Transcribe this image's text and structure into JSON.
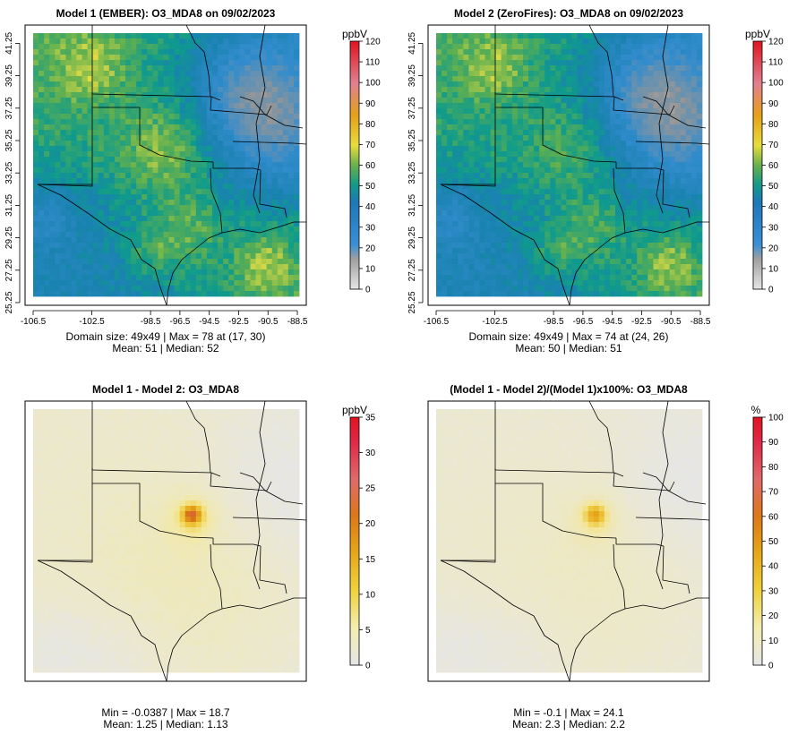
{
  "chart_data": [
    {
      "type": "heatmap",
      "id": "p1",
      "title": "Model 1 (EMBER): O3_MDA8 on 09/02/2023",
      "x_ticks": [
        "-106.5",
        "-102.5",
        "-98.5",
        "-96.5",
        "-94.5",
        "-92.5",
        "-90.5",
        "-88.5"
      ],
      "x_tick_values": [
        -106.5,
        -102.5,
        -98.5,
        -96.5,
        -94.5,
        -92.5,
        -90.5,
        -88.5
      ],
      "y_ticks": [
        "25.25",
        "27.25",
        "29.25",
        "31.25",
        "33.25",
        "35.25",
        "37.25",
        "39.25",
        "41.25"
      ],
      "y_tick_values": [
        25.25,
        27.25,
        29.25,
        31.25,
        33.25,
        35.25,
        37.25,
        39.25,
        41.25
      ],
      "colorbar": {
        "unit": "ppbV",
        "min": 0,
        "max": 120,
        "ticks": [
          "0",
          "10",
          "20",
          "30",
          "40",
          "50",
          "60",
          "70",
          "80",
          "90",
          "100",
          "110",
          "120"
        ]
      },
      "stats_line1": "Domain size: 49x49 | Max = 78 at (17, 30)",
      "stats_line2": "Mean: 51 |  Median: 52",
      "max_value": 78,
      "mean": 51,
      "median": 52
    },
    {
      "type": "heatmap",
      "id": "p2",
      "title": "Model 2 (ZeroFires): O3_MDA8 on 09/02/2023",
      "x_ticks": [
        "-106.5",
        "-102.5",
        "-98.5",
        "-96.5",
        "-94.5",
        "-92.5",
        "-90.5",
        "-88.5"
      ],
      "x_tick_values": [
        -106.5,
        -102.5,
        -98.5,
        -96.5,
        -94.5,
        -92.5,
        -90.5,
        -88.5
      ],
      "y_ticks": [
        "25.25",
        "27.25",
        "29.25",
        "31.25",
        "33.25",
        "35.25",
        "37.25",
        "39.25",
        "41.25"
      ],
      "y_tick_values": [
        25.25,
        27.25,
        29.25,
        31.25,
        33.25,
        35.25,
        37.25,
        39.25,
        41.25
      ],
      "colorbar": {
        "unit": "ppbV",
        "min": 0,
        "max": 120,
        "ticks": [
          "0",
          "10",
          "20",
          "30",
          "40",
          "50",
          "60",
          "70",
          "80",
          "90",
          "100",
          "110",
          "120"
        ]
      },
      "stats_line1": "Domain size: 49x49 | Max = 74 at (24, 26)",
      "stats_line2": "Mean: 50 |  Median: 51",
      "max_value": 74,
      "mean": 50,
      "median": 51
    },
    {
      "type": "heatmap",
      "id": "p3",
      "title": "Model 1 - Model 2: O3_MDA8",
      "colorbar": {
        "unit": "ppbV",
        "min": 0,
        "max": 35,
        "ticks": [
          "0",
          "5",
          "10",
          "15",
          "20",
          "25",
          "30",
          "35"
        ]
      },
      "stats_line1": "Min = -0.0387 | Max = 18.7",
      "stats_line2": "Mean: 1.25 |  Median: 1.13",
      "min_value": -0.0387,
      "max_value": 18.7,
      "mean": 1.25,
      "median": 1.13
    },
    {
      "type": "heatmap",
      "id": "p4",
      "title": "(Model 1 - Model 2)/(Model 1)x100%: O3_MDA8",
      "colorbar": {
        "unit": "%",
        "min": 0,
        "max": 100,
        "ticks": [
          "0",
          "10",
          "20",
          "30",
          "40",
          "50",
          "60",
          "70",
          "80",
          "90",
          "100"
        ]
      },
      "stats_line1": "Min = -0.1 | Max = 24.1",
      "stats_line2": "Mean: 2.3 |  Median: 2.2",
      "min_value": -0.1,
      "max_value": 24.1,
      "mean": 2.3,
      "median": 2.2
    }
  ]
}
